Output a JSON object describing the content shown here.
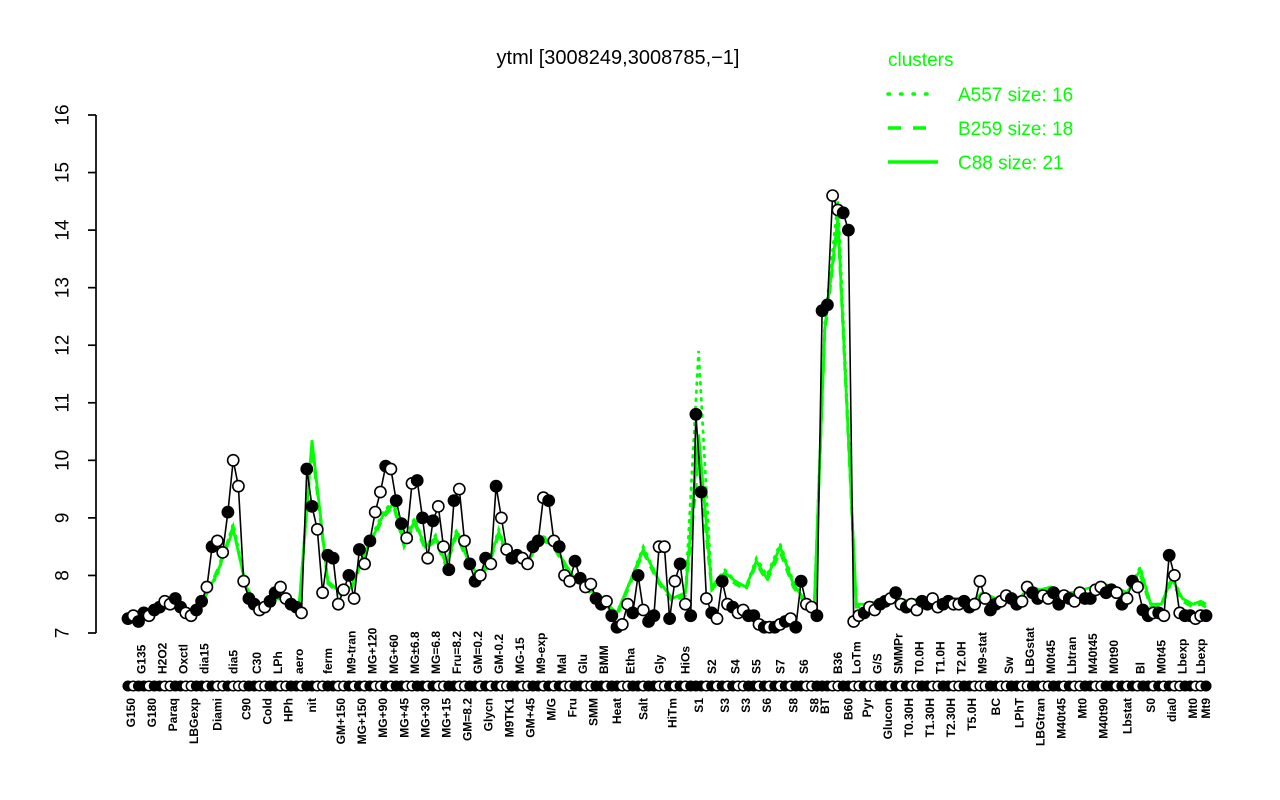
{
  "colors": {
    "cluster_green": "#00ff00",
    "series_black": "#000000",
    "background": "#ffffff"
  },
  "chart_data": {
    "type": "line",
    "title": "ytml [3008249,3008785,−1]",
    "xlabel": "",
    "ylabel": "",
    "ylim": [
      7,
      16
    ],
    "y_ticks": [
      7,
      8,
      9,
      10,
      11,
      12,
      13,
      14,
      15,
      16
    ],
    "grid": false,
    "legend": {
      "title": "clusters",
      "position": "top-right",
      "entries": [
        {
          "label": "A557 size: 16",
          "style": "dotted"
        },
        {
          "label": "B259 size: 18",
          "style": "dashed"
        },
        {
          "label": "C88 size: 21",
          "style": "solid"
        }
      ]
    },
    "series_note": "black = gene profile points (f=filled, o=open); clusters A557/B259/C88 = green mean lines per condition group",
    "groups": [
      [
        "G150",
        "B",
        [
          7.25,
          7.3
        ],
        "fo",
        7.35,
        7.3,
        7.32
      ],
      [
        "G135",
        "T",
        [
          7.2,
          7.35
        ],
        "ff",
        7.3,
        7.33,
        7.27
      ],
      [
        "G180",
        "B",
        [
          7.3,
          7.4
        ],
        "of",
        7.4,
        7.36,
        7.36
      ],
      [
        "H2O2",
        "T",
        [
          7.45,
          7.55
        ],
        "fo",
        7.5,
        7.46,
        7.42
      ],
      [
        "Paraq",
        "B",
        [
          7.5,
          7.6
        ],
        "of",
        7.45,
        7.5,
        7.5
      ],
      [
        "Oxctl",
        "T",
        [
          7.45,
          7.35
        ],
        "fo",
        7.4,
        7.36,
        7.4
      ],
      [
        "LBGexp",
        "B",
        [
          7.3,
          7.4
        ],
        "of",
        7.36,
        7.3,
        7.35
      ],
      [
        "dia15",
        "T",
        [
          7.55,
          7.8
        ],
        "fo",
        7.6,
        7.56,
        7.6
      ],
      [
        "Diami",
        "B",
        [
          8.5,
          8.6,
          8.4
        ],
        "foo",
        8.0,
        8.1,
        8.05
      ],
      [
        "dia5",
        "T",
        [
          9.1,
          10.0,
          9.55
        ],
        "foo",
        8.9,
        8.85,
        8.8
      ],
      [
        "C90",
        "B",
        [
          7.9,
          7.6
        ],
        "of",
        7.8,
        7.76,
        7.8
      ],
      [
        "C30",
        "T",
        [
          7.5,
          7.4
        ],
        "fo",
        7.5,
        7.46,
        7.5
      ],
      [
        "Cold",
        "B",
        [
          7.45,
          7.55
        ],
        "of",
        7.5,
        7.55,
        7.5
      ],
      [
        "LPh",
        "T",
        [
          7.7,
          7.8
        ],
        "fo",
        7.6,
        7.66,
        7.6
      ],
      [
        "HPh",
        "B",
        [
          7.6,
          7.5
        ],
        "of",
        7.56,
        7.5,
        7.55
      ],
      [
        "aero",
        "T",
        [
          7.45,
          7.35
        ],
        "fo",
        7.4,
        7.45,
        7.4
      ],
      [
        "nit",
        "B",
        [
          9.85,
          9.2,
          8.8
        ],
        "ffo",
        10.3,
        10.2,
        10.35
      ],
      [
        "ferm",
        "T",
        [
          7.7,
          8.35,
          8.3
        ],
        "off",
        7.9,
        7.86,
        7.9
      ],
      [
        "GM+150",
        "B",
        [
          7.5,
          7.75
        ],
        "oo",
        7.7,
        7.66,
        7.7
      ],
      [
        "M9-tran",
        "T",
        [
          8.0,
          7.6
        ],
        "fo",
        7.8,
        7.76,
        7.8
      ],
      [
        "MG+150",
        "B",
        [
          8.45,
          8.2
        ],
        "fo",
        8.3,
        8.26,
        8.3
      ],
      [
        "MG+120",
        "T",
        [
          8.6,
          9.1
        ],
        "fo",
        8.7,
        8.6,
        8.65
      ],
      [
        "MG+90",
        "B",
        [
          9.45,
          9.9
        ],
        "of",
        9.1,
        9.0,
        9.05
      ],
      [
        "MG+60",
        "T",
        [
          9.85,
          9.3
        ],
        "of",
        9.3,
        9.2,
        9.25
      ],
      [
        "MG+45",
        "B",
        [
          8.9,
          8.65
        ],
        "fo",
        8.6,
        8.5,
        8.55
      ],
      [
        "MG±6.8",
        "T",
        [
          9.6,
          9.65
        ],
        "of",
        9.0,
        8.9,
        8.95
      ],
      [
        "MG+30",
        "B",
        [
          9.0,
          8.3
        ],
        "fo",
        8.5,
        8.45,
        8.5
      ],
      [
        "MG=6.8",
        "T",
        [
          8.95,
          9.2
        ],
        "fo",
        8.7,
        8.6,
        8.65
      ],
      [
        "MG+15",
        "B",
        [
          8.5,
          8.1
        ],
        "of",
        8.2,
        8.15,
        8.2
      ],
      [
        "Fru=8.2",
        "T",
        [
          9.3,
          9.5
        ],
        "fo",
        8.8,
        8.7,
        8.75
      ],
      [
        "GM=8.2",
        "B",
        [
          8.6,
          8.2
        ],
        "of",
        8.3,
        8.25,
        8.3
      ],
      [
        "GM=0.2",
        "T",
        [
          7.9,
          8.0
        ],
        "fo",
        8.0,
        7.95,
        8.0
      ],
      [
        "Glycn",
        "B",
        [
          8.3,
          8.2
        ],
        "fo",
        8.2,
        8.15,
        8.2
      ],
      [
        "GM-0.2",
        "T",
        [
          9.55,
          9.0
        ],
        "fo",
        8.8,
        8.7,
        8.75
      ],
      [
        "M9TK1",
        "B",
        [
          8.45,
          8.3
        ],
        "of",
        8.3,
        8.25,
        8.3
      ],
      [
        "MG-15",
        "T",
        [
          8.35,
          8.3
        ],
        "fo",
        8.25,
        8.2,
        8.25
      ],
      [
        "GM+45",
        "B",
        [
          8.2,
          8.5
        ],
        "of",
        8.3,
        8.35,
        8.3
      ],
      [
        "M9-exp",
        "T",
        [
          8.6,
          9.35
        ],
        "fo",
        8.7,
        8.6,
        8.65
      ],
      [
        "M/G",
        "B",
        [
          9.3,
          8.6
        ],
        "fo",
        8.6,
        8.55,
        8.6
      ],
      [
        "Mal",
        "T",
        [
          8.5,
          8.0
        ],
        "fo",
        8.3,
        8.25,
        8.3
      ],
      [
        "Fru",
        "B",
        [
          7.9,
          8.25
        ],
        "of",
        8.0,
        7.95,
        8.0
      ],
      [
        "Glu",
        "T",
        [
          7.95,
          7.8
        ],
        "fo",
        7.85,
        7.8,
        7.85
      ],
      [
        "SMM",
        "B",
        [
          7.85,
          7.6
        ],
        "of",
        7.7,
        7.66,
        7.7
      ],
      [
        "BMM",
        "T",
        [
          7.5,
          7.55
        ],
        "fo",
        7.55,
        7.5,
        7.55
      ],
      [
        "Heat",
        "B",
        [
          7.3,
          7.1,
          7.15
        ],
        "ffo",
        7.35,
        7.3,
        7.35
      ],
      [
        "Etha",
        "T",
        [
          7.5,
          7.35
        ],
        "of",
        7.9,
        7.85,
        7.9
      ],
      [
        "Salt",
        "B",
        [
          8.0,
          7.4,
          7.2
        ],
        "fof",
        8.5,
        8.4,
        8.45
      ],
      [
        "Gly",
        "T",
        [
          7.3,
          8.5,
          8.5
        ],
        "foo",
        7.9,
        7.85,
        7.9
      ],
      [
        "HiTm",
        "B",
        [
          7.25,
          7.9
        ],
        "fo",
        7.6,
        7.55,
        7.6
      ],
      [
        "HiOs",
        "T",
        [
          8.2,
          7.5,
          7.3
        ],
        "fof",
        7.7,
        7.65,
        7.7
      ],
      [
        "S1",
        "B",
        [
          10.8,
          9.45
        ],
        "ff",
        11.9,
        10.0,
        10.45
      ],
      [
        "S2",
        "T",
        [
          7.6,
          7.35,
          7.25
        ],
        "ofo",
        7.8,
        7.75,
        7.8
      ],
      [
        "S3",
        "B",
        [
          7.9,
          7.5
        ],
        "fo",
        8.1,
        8.0,
        8.05
      ],
      [
        "S4",
        "T",
        [
          7.45,
          7.35
        ],
        "fo",
        7.9,
        7.85,
        7.9
      ],
      [
        "S3",
        "B",
        [
          7.4,
          7.3
        ],
        "of",
        7.8,
        7.75,
        7.8
      ],
      [
        "S5",
        "T",
        [
          7.3,
          7.15
        ],
        "fo",
        8.3,
        8.2,
        8.25
      ],
      [
        "S6",
        "B",
        [
          7.1,
          7.1
        ],
        "fo",
        8.0,
        7.9,
        7.95
      ],
      [
        "S7",
        "T",
        [
          7.1,
          7.15,
          7.2
        ],
        "fof",
        8.55,
        8.4,
        8.5
      ],
      [
        "S8",
        "B",
        [
          7.25,
          7.1
        ],
        "of",
        7.9,
        7.8,
        7.85
      ],
      [
        "S6",
        "T",
        [
          7.9,
          7.5
        ],
        "fo",
        7.6,
        7.55,
        7.6
      ],
      [
        "S8",
        "B",
        [
          7.45,
          7.3
        ],
        "of",
        7.45,
        7.4,
        7.45
      ],
      [
        "BT",
        "B",
        [
          12.6,
          12.7
        ],
        "ff",
        12.4,
        12.2,
        12.3
      ],
      [
        "B36",
        "T",
        [
          14.6,
          14.35,
          14.3
        ],
        "oof",
        14.5,
        14.1,
        14.2
      ],
      [
        "B60",
        "B",
        [
          14.0
        ],
        "f",
        10.5,
        10.3,
        10.4
      ],
      [
        "LoTm",
        "T",
        [
          7.2,
          7.3
        ],
        "oo",
        7.5,
        7.45,
        7.5
      ],
      [
        "Pyr",
        "B",
        [
          7.35,
          7.45
        ],
        "fo",
        7.5,
        7.45,
        7.5
      ],
      [
        "G/S",
        "T",
        [
          7.4,
          7.5
        ],
        "of",
        7.55,
        7.5,
        7.55
      ],
      [
        "Glucon",
        "B",
        [
          7.55,
          7.6
        ],
        "fo",
        7.6,
        7.55,
        7.6
      ],
      [
        "SMMPr",
        "T",
        [
          7.7,
          7.5
        ],
        "fo",
        7.6,
        7.55,
        7.6
      ],
      [
        "T0.30H",
        "B",
        [
          7.45,
          7.5
        ],
        "fo",
        7.55,
        7.5,
        7.55
      ],
      [
        "T0.0H",
        "T",
        [
          7.4,
          7.55
        ],
        "of",
        7.6,
        7.55,
        7.6
      ],
      [
        "T1.30H",
        "B",
        [
          7.5,
          7.6
        ],
        "fo",
        7.6,
        7.55,
        7.6
      ],
      [
        "T1.0H",
        "T",
        [
          7.45,
          7.5
        ],
        "of",
        7.55,
        7.5,
        7.55
      ],
      [
        "T2.30H",
        "B",
        [
          7.55,
          7.5
        ],
        "fo",
        7.6,
        7.55,
        7.6
      ],
      [
        "T2.0H",
        "T",
        [
          7.5,
          7.55
        ],
        "of",
        7.6,
        7.55,
        7.6
      ],
      [
        "T5.0H",
        "B",
        [
          7.45,
          7.5
        ],
        "fo",
        7.55,
        7.5,
        7.55
      ],
      [
        "M9-stat",
        "T",
        [
          7.9,
          7.6
        ],
        "oo",
        7.7,
        7.65,
        7.7
      ],
      [
        "BC",
        "B",
        [
          7.4,
          7.5,
          7.55
        ],
        "ffo",
        7.6,
        7.55,
        7.6
      ],
      [
        "Sw",
        "T",
        [
          7.65,
          7.6
        ],
        "of",
        7.7,
        7.65,
        7.7
      ],
      [
        "LPhT",
        "B",
        [
          7.5,
          7.55
        ],
        "fo",
        7.6,
        7.55,
        7.6
      ],
      [
        "LBGstat",
        "T",
        [
          7.8,
          7.7
        ],
        "of",
        7.8,
        7.75,
        7.8
      ],
      [
        "LBGtran",
        "B",
        [
          7.6,
          7.65
        ],
        "fo",
        7.75,
        7.7,
        7.75
      ],
      [
        "M0t45",
        "T",
        [
          7.6,
          7.7
        ],
        "of",
        7.8,
        7.75,
        7.8
      ],
      [
        "M40t45",
        "B",
        [
          7.5,
          7.65
        ],
        "fo",
        7.7,
        7.65,
        7.7
      ],
      [
        "Lbtran",
        "T",
        [
          7.6,
          7.55
        ],
        "fo",
        7.7,
        7.65,
        7.7
      ],
      [
        "Mt0",
        "B",
        [
          7.7,
          7.6
        ],
        "of",
        7.75,
        7.7,
        7.75
      ],
      [
        "M40t45",
        "T",
        [
          7.6,
          7.75
        ],
        "fo",
        7.8,
        7.75,
        7.8
      ],
      [
        "M40t90",
        "B",
        [
          7.8,
          7.7
        ],
        "of",
        7.85,
        7.8,
        7.85
      ],
      [
        "M0t90",
        "T",
        [
          7.75,
          7.7
        ],
        "fo",
        7.8,
        7.75,
        7.8
      ],
      [
        "Lbstat",
        "B",
        [
          7.5,
          7.6,
          7.9
        ],
        "fof",
        7.7,
        7.65,
        7.7
      ],
      [
        "Bl",
        "T",
        [
          7.8,
          7.4
        ],
        "of",
        8.15,
        8.0,
        8.1
      ],
      [
        "S0",
        "B",
        [
          7.3,
          7.35
        ],
        "fo",
        7.5,
        7.45,
        7.5
      ],
      [
        "M0t45",
        "T",
        [
          7.35,
          7.3
        ],
        "fo",
        7.5,
        7.45,
        7.5
      ],
      [
        "dia0",
        "B",
        [
          8.35,
          8.0
        ],
        "fo",
        8.0,
        7.9,
        7.95
      ],
      [
        "Lbexp",
        "T",
        [
          7.35,
          7.3
        ],
        "of",
        7.6,
        7.55,
        7.6
      ],
      [
        "Mt0",
        "B",
        [
          7.3,
          7.25
        ],
        "fo",
        7.5,
        7.45,
        7.5
      ],
      [
        "Lbexp",
        "T",
        [
          7.3
        ],
        "o",
        7.55,
        7.5,
        7.55
      ],
      [
        "Mt9",
        "B",
        [
          7.3
        ],
        "f",
        7.5,
        7.45,
        7.5
      ]
    ]
  }
}
